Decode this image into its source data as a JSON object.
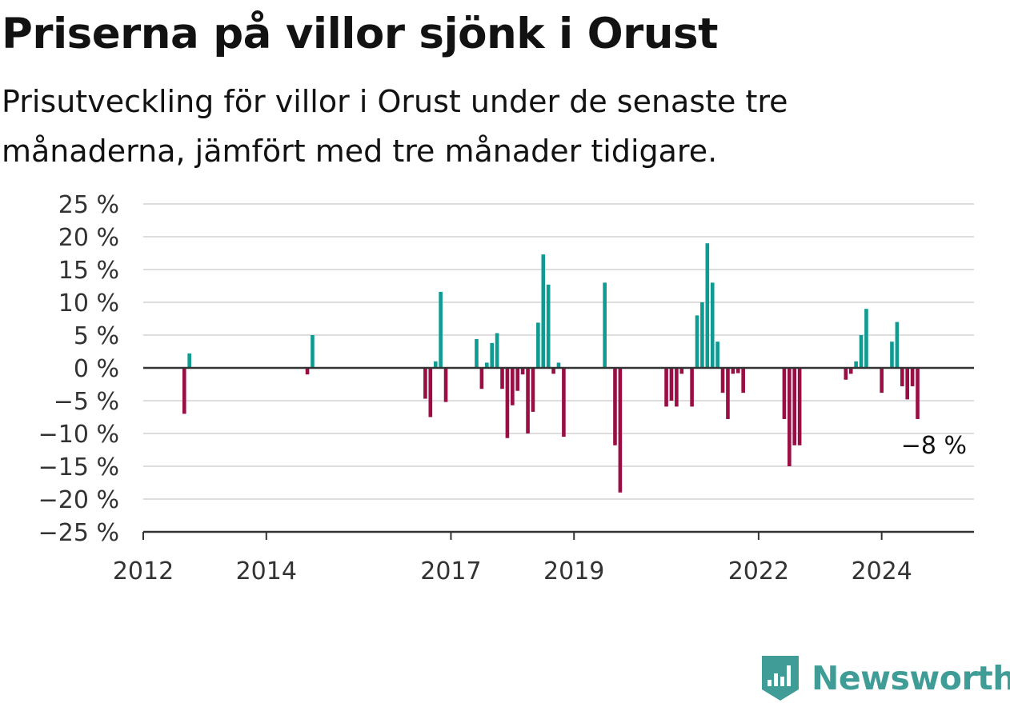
{
  "title": "Priserna på villor sjönk i Orust",
  "subtitle": "Prisutveckling för villor i Orust under de senaste tre månaderna, jämfört med tre månader tidigare.",
  "brand": {
    "name": "Newsworthy",
    "color": "#3f9c96"
  },
  "colors": {
    "positive": "#0f9b92",
    "negative": "#990f45",
    "grid": "#dddddd",
    "axis": "#333333"
  },
  "chart_data": {
    "type": "bar",
    "ylim": [
      -25,
      25
    ],
    "yticks": [
      25,
      20,
      15,
      10,
      5,
      0,
      -5,
      -10,
      -15,
      -20,
      -25
    ],
    "ytick_labels": [
      "25 %",
      "20 %",
      "15 %",
      "10 %",
      "5 %",
      "0 %",
      "−5 %",
      "−10 %",
      "−15 %",
      "−20 %",
      "−25 %"
    ],
    "xlim": [
      "2012-01",
      "2025-07"
    ],
    "xticks": [
      "2012-01",
      "2014-01",
      "2017-01",
      "2019-01",
      "2022-01",
      "2024-01"
    ],
    "xtick_labels": [
      "2012",
      "2014",
      "2017",
      "2019",
      "2022",
      "2024"
    ],
    "grid": true,
    "last_value_label": "−8 %",
    "series": [
      {
        "x": [
          "2012-09",
          "2012-10",
          "2014-09",
          "2014-10",
          "2016-08",
          "2016-09",
          "2016-10",
          "2016-11",
          "2016-12",
          "2017-06",
          "2017-07",
          "2017-08",
          "2017-09",
          "2017-10",
          "2017-11",
          "2017-12",
          "2018-01",
          "2018-02",
          "2018-03",
          "2018-04",
          "2018-05",
          "2018-06",
          "2018-07",
          "2018-08",
          "2018-09",
          "2018-10",
          "2018-11",
          "2019-07",
          "2019-09",
          "2019-10",
          "2020-07",
          "2020-08",
          "2020-09",
          "2020-10",
          "2020-12",
          "2021-01",
          "2021-02",
          "2021-03",
          "2021-04",
          "2021-05",
          "2021-06",
          "2021-07",
          "2021-08",
          "2021-09",
          "2021-10",
          "2022-06",
          "2022-07",
          "2022-08",
          "2022-09",
          "2023-06",
          "2023-07",
          "2023-08",
          "2023-09",
          "2023-10",
          "2024-01",
          "2024-03",
          "2024-04",
          "2024-05",
          "2024-06",
          "2024-07",
          "2024-08"
        ],
        "values": [
          -7,
          2.2,
          -1,
          5,
          -4.7,
          -7.5,
          1,
          11.6,
          -5.2,
          4.4,
          -3.2,
          0.8,
          3.8,
          5.3,
          -3.2,
          -10.7,
          -5.7,
          -3.5,
          -1,
          -10,
          -6.7,
          6.9,
          17.3,
          12.7,
          -0.9,
          0.8,
          -10.5,
          13,
          -11.8,
          -19,
          -5.9,
          -5,
          -5.9,
          -0.9,
          -5.9,
          8,
          10,
          19,
          13,
          4,
          -3.8,
          -7.8,
          -0.9,
          -0.8,
          -3.8,
          -7.8,
          -15,
          -11.8,
          -11.8,
          -1.8,
          -0.9,
          1,
          5,
          9,
          -3.8,
          4,
          7,
          -2.8,
          -4.8,
          -2.8,
          -7.8
        ]
      }
    ]
  }
}
